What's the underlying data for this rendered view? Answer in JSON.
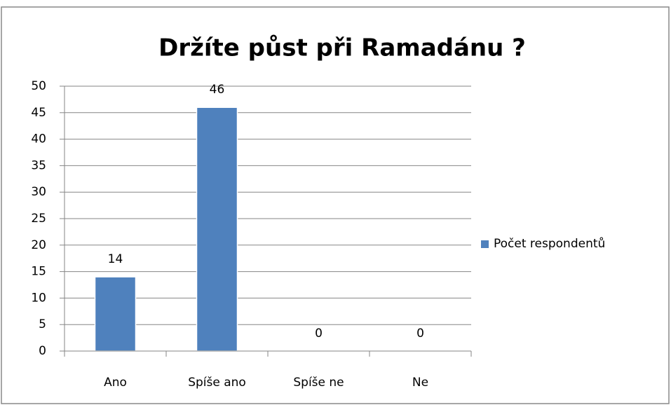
{
  "chart_data": {
    "type": "bar",
    "title": "Držíte půst při Ramadánu ?",
    "categories": [
      "Ano",
      "Spíše ano",
      "Spíše ne",
      "Ne"
    ],
    "series": [
      {
        "name": "Počet respondentů",
        "color": "#4f81bd",
        "values": [
          14,
          46,
          0,
          0
        ]
      }
    ],
    "ylim": [
      0,
      50
    ],
    "yticks": [
      0,
      5,
      10,
      15,
      20,
      25,
      30,
      35,
      40,
      45,
      50
    ],
    "grid": true,
    "legend": "right",
    "data_labels": true
  }
}
